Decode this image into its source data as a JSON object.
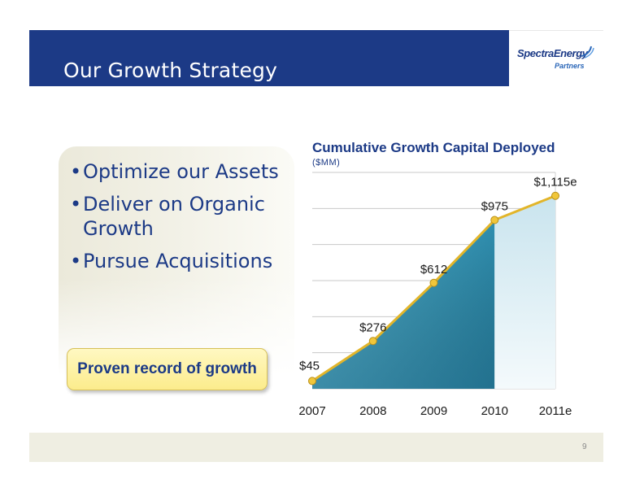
{
  "slide": {
    "title": "Our Growth Strategy",
    "page_number": "9",
    "colors": {
      "header": "#1c3a86",
      "accent_line": "#e2b52a",
      "area": "#3ea8c6",
      "area_light": "#d8ecf3"
    }
  },
  "logo": {
    "main": "SpectraEnergy",
    "sub": "Partners"
  },
  "bullets": [
    {
      "text": "Optimize our Assets"
    },
    {
      "text": "Deliver on Organic Growth"
    },
    {
      "text": "Pursue Acquisitions"
    }
  ],
  "bullet_glyph": "•",
  "callout": {
    "text": "Proven record of growth"
  },
  "chart_data": {
    "type": "area",
    "title": "Cumulative Growth Capital Deployed",
    "subtitle": "($MM)",
    "categories": [
      "2007",
      "2008",
      "2009",
      "2010",
      "2011e"
    ],
    "values": [
      45,
      276,
      612,
      975,
      1115
    ],
    "labels": [
      "$45",
      "$276",
      "$612",
      "$975",
      "$1,115e"
    ],
    "ylim": [
      0,
      1250
    ],
    "grid": true,
    "estimated_categories": [
      "2011e"
    ]
  }
}
